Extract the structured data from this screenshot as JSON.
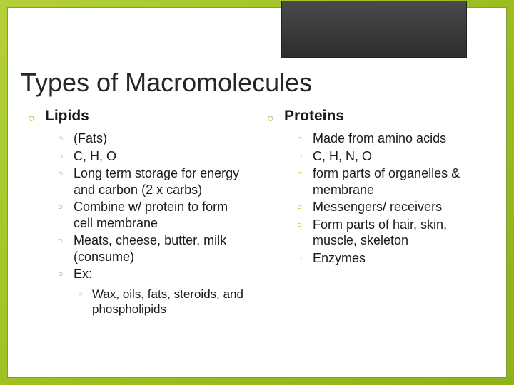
{
  "title": "Types of Macromolecules",
  "colors": {
    "accent": "#99b31e",
    "text": "#1a1a1a",
    "title": "#262626",
    "underline": "#9aa54a",
    "bg_grad_a": "#b5d13a",
    "bg_grad_b": "#8db319",
    "corner_top": "#4a4a4a",
    "corner_bottom": "#2d2d2d"
  },
  "typography": {
    "title_fontsize": 36,
    "top_fontsize": 21,
    "sub_fontsize": 18,
    "subsub_fontsize": 17,
    "family": "Arial"
  },
  "columns": [
    {
      "header": "Lipids",
      "items": [
        {
          "text": "(Fats)"
        },
        {
          "text": "C, H, O"
        },
        {
          "text": "Long term storage for energy and carbon (2 x carbs)"
        },
        {
          "text": "Combine w/ protein to form cell membrane"
        },
        {
          "text": "Meats, cheese, butter, milk (consume)"
        },
        {
          "text": "Ex:",
          "children": [
            {
              "text": "Wax, oils, fats, steroids, and phospholipids"
            }
          ]
        }
      ]
    },
    {
      "header": "Proteins",
      "items": [
        {
          "text": "Made from amino acids"
        },
        {
          "text": "C, H, N, O"
        },
        {
          "text": "form parts of organelles & membrane"
        },
        {
          "text": "Messengers/ receivers"
        },
        {
          "text": "Form parts of hair, skin, muscle, skeleton"
        },
        {
          "text": "Enzymes"
        }
      ]
    }
  ]
}
